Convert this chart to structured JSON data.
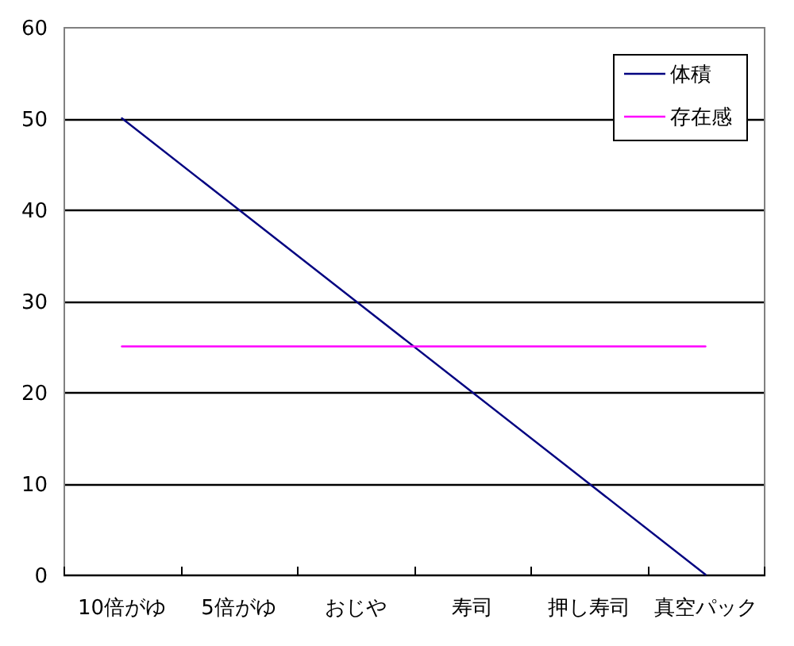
{
  "chart_data": {
    "type": "line",
    "categories": [
      "10倍がゆ",
      "5倍がゆ",
      "おじや",
      "寿司",
      "押し寿司",
      "真空パック"
    ],
    "series": [
      {
        "name": "体積",
        "color": "#000080",
        "values": [
          50,
          40,
          30,
          20,
          10,
          0
        ]
      },
      {
        "name": "存在感",
        "color": "#ff00ff",
        "values": [
          25,
          25,
          25,
          25,
          25,
          25
        ]
      }
    ],
    "ylim": [
      0,
      60
    ],
    "yticks": [
      0,
      10,
      20,
      30,
      40,
      50,
      60
    ],
    "grid": "y",
    "legend": "top right"
  }
}
